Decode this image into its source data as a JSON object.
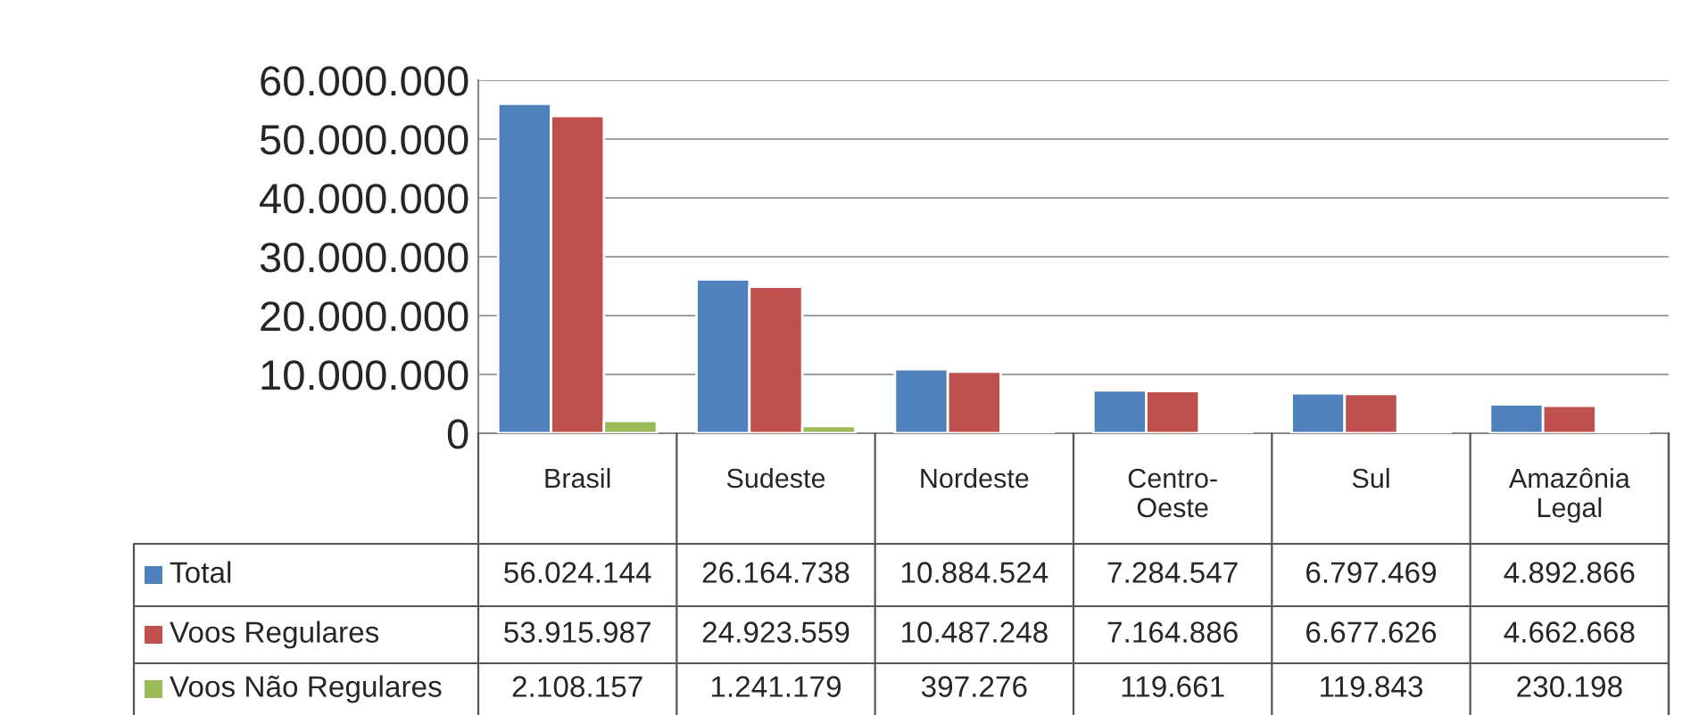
{
  "chart_data": {
    "type": "bar",
    "categories": [
      "Brasil",
      "Sudeste",
      "Nordeste",
      "Centro-\nOeste",
      "Sul",
      "Amazônia\nLegal"
    ],
    "series": [
      {
        "name": "Total",
        "color": "#4f81bd",
        "values": [
          56024144,
          26164738,
          10884524,
          7284547,
          6797469,
          4892866
        ],
        "value_labels": [
          "56.024.144",
          "26.164.738",
          "10.884.524",
          "7.284.547",
          "6.797.469",
          "4.892.866"
        ]
      },
      {
        "name": "Voos Regulares",
        "color": "#c0504d",
        "values": [
          53915987,
          24923559,
          10487248,
          7164886,
          6677626,
          4662668
        ],
        "value_labels": [
          "53.915.987",
          "24.923.559",
          "10.487.248",
          "7.164.886",
          "6.677.626",
          "4.662.668"
        ]
      },
      {
        "name": "Voos Não Regulares",
        "color": "#9bbb59",
        "values": [
          2108157,
          1241179,
          397276,
          119661,
          119843,
          230198
        ],
        "value_labels": [
          "2.108.157",
          "1.241.179",
          "397.276",
          "119.661",
          "119.843",
          "230.198"
        ]
      }
    ],
    "ylim": [
      0,
      60000000
    ],
    "yticks": [
      {
        "value": 0,
        "label": "0"
      },
      {
        "value": 10000000,
        "label": "10.000.000"
      },
      {
        "value": 20000000,
        "label": "20.000.000"
      },
      {
        "value": 30000000,
        "label": "30.000.000"
      },
      {
        "value": 40000000,
        "label": "40.000.000"
      },
      {
        "value": 50000000,
        "label": "50.000.000"
      },
      {
        "value": 60000000,
        "label": "60.000.000"
      }
    ],
    "grid": "y",
    "legend": "bottom"
  }
}
